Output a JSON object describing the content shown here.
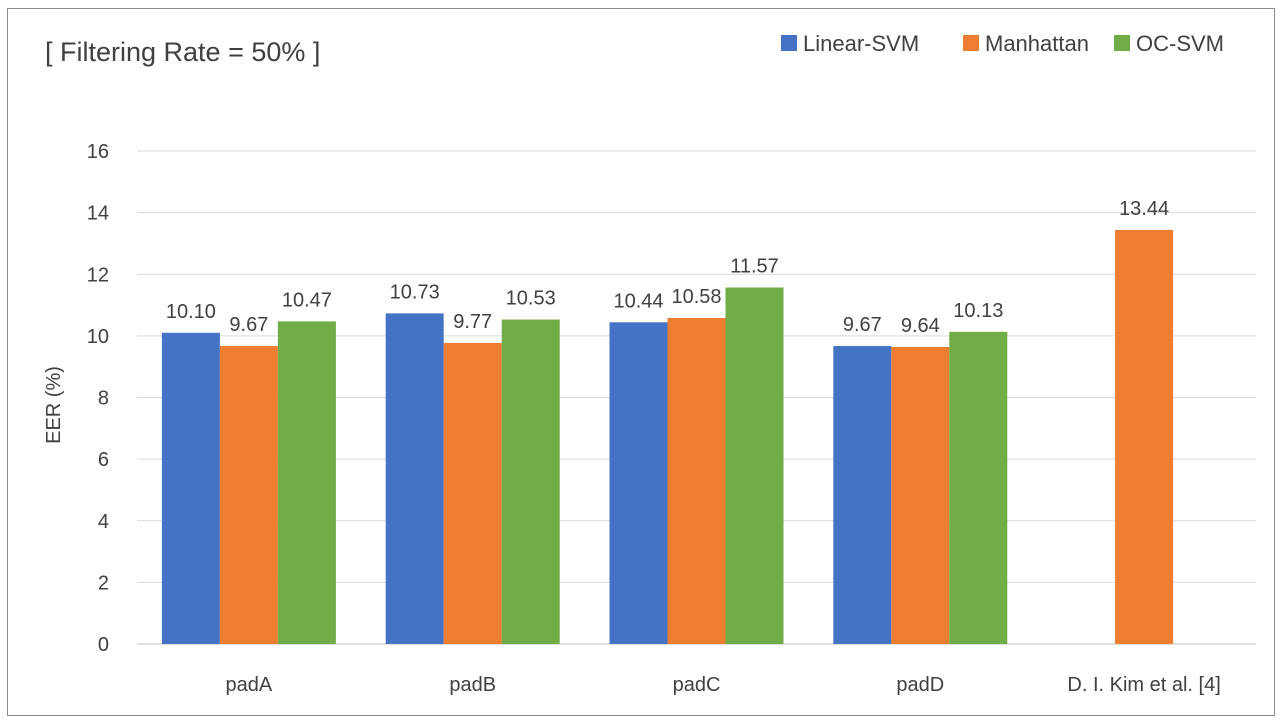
{
  "chart_data": {
    "type": "bar",
    "title": "[ Filtering Rate = 50% ]",
    "xlabel": "",
    "ylabel": "EER (%)",
    "ylim": [
      0,
      16
    ],
    "yticks": [
      0,
      2,
      4,
      6,
      8,
      10,
      12,
      14,
      16
    ],
    "grid": true,
    "legend_position": "top-right",
    "categories": [
      "padA",
      "padB",
      "padC",
      "padD",
      "D. I. Kim et al. [4]"
    ],
    "series": [
      {
        "name": "Linear-SVM",
        "color": "#4472C4",
        "values": [
          10.1,
          10.73,
          10.44,
          9.67,
          null
        ],
        "labels": [
          "10.10",
          "10.73",
          "10.44",
          "9.67",
          null
        ]
      },
      {
        "name": "Manhattan",
        "color": "#ED7D31",
        "values": [
          9.67,
          9.77,
          10.58,
          9.64,
          13.44
        ],
        "labels": [
          "9.67",
          "9.77",
          "10.58",
          "9.64",
          "13.44"
        ]
      },
      {
        "name": "OC-SVM",
        "color": "#70AD47",
        "values": [
          10.47,
          10.53,
          11.57,
          10.13,
          null
        ],
        "labels": [
          "10.47",
          "10.53",
          "11.57",
          "10.13",
          null
        ]
      }
    ]
  }
}
